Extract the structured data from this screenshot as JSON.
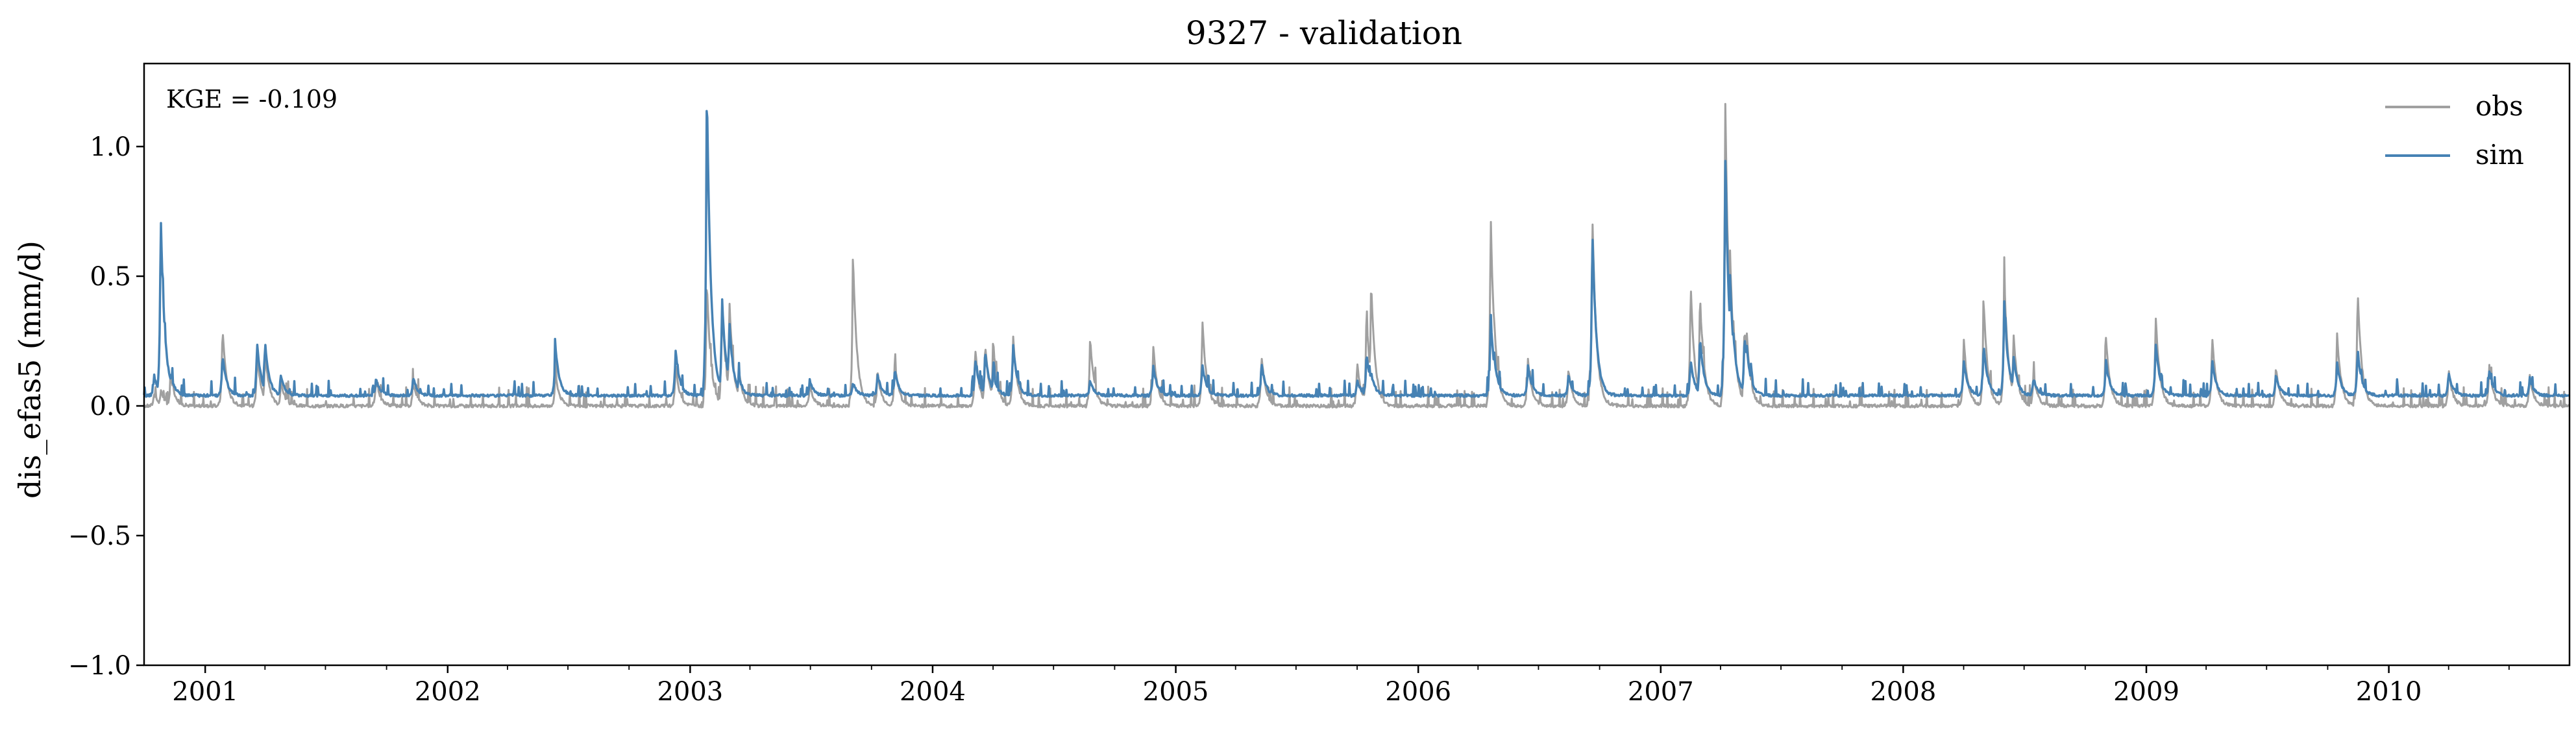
{
  "chart_data": {
    "type": "line",
    "title": "9327 - validation",
    "ylabel": "dis_efas5 (mm/d)",
    "xlabel": "",
    "annotation": "KGE = -0.109",
    "xlim": [
      "2000-10-01",
      "2010-09-30"
    ],
    "ylim": [
      -1.0,
      1.32
    ],
    "yticks": [
      -1.0,
      -0.5,
      0.0,
      0.5,
      1.0
    ],
    "ytick_labels": [
      "−1.0",
      "−0.5",
      "0.0",
      "0.5",
      "1.0"
    ],
    "xticks": [
      "2001-01-01",
      "2002-01-01",
      "2003-01-01",
      "2004-01-01",
      "2005-01-01",
      "2006-01-01",
      "2007-01-01",
      "2008-01-01",
      "2009-01-01",
      "2010-01-01"
    ],
    "xtick_labels": [
      "2001",
      "2002",
      "2003",
      "2004",
      "2005",
      "2006",
      "2007",
      "2008",
      "2009",
      "2010"
    ],
    "grid": false,
    "legend_position": "top-right",
    "baseline": {
      "obs": 0.0,
      "sim": 0.04
    },
    "series": [
      {
        "name": "obs",
        "color": "#a0a0a0",
        "peaks": [
          [
            "2000-10-16",
            0.05
          ],
          [
            "2000-10-26",
            0.06
          ],
          [
            "2000-11-10",
            0.13
          ],
          [
            "2001-01-27",
            0.31
          ],
          [
            "2001-03-20",
            0.21
          ],
          [
            "2001-04-01",
            0.22
          ],
          [
            "2001-04-25",
            0.1
          ],
          [
            "2001-09-15",
            0.11
          ],
          [
            "2001-11-10",
            0.09
          ],
          [
            "2002-06-12",
            0.13
          ],
          [
            "2002-12-10",
            0.16
          ],
          [
            "2003-01-26",
            0.5
          ],
          [
            "2003-02-18",
            0.41
          ],
          [
            "2003-03-01",
            0.42
          ],
          [
            "2003-03-15",
            0.15
          ],
          [
            "2003-06-30",
            0.08
          ],
          [
            "2003-09-03",
            0.6
          ],
          [
            "2003-10-10",
            0.13
          ],
          [
            "2003-11-05",
            0.18
          ],
          [
            "2004-03-05",
            0.23
          ],
          [
            "2004-03-20",
            0.25
          ],
          [
            "2004-04-01",
            0.26
          ],
          [
            "2004-05-01",
            0.28
          ],
          [
            "2004-08-25",
            0.27
          ],
          [
            "2004-11-28",
            0.24
          ],
          [
            "2005-02-10",
            0.34
          ],
          [
            "2005-05-10",
            0.2
          ],
          [
            "2005-10-01",
            0.17
          ],
          [
            "2005-10-15",
            0.37
          ],
          [
            "2005-10-22",
            0.49
          ],
          [
            "2006-04-20",
            0.75
          ],
          [
            "2006-04-25",
            0.35
          ],
          [
            "2006-06-15",
            0.18
          ],
          [
            "2006-08-15",
            0.14
          ],
          [
            "2006-09-20",
            0.76
          ],
          [
            "2007-02-15",
            0.48
          ],
          [
            "2007-03-01",
            0.44
          ],
          [
            "2007-04-08",
            1.22
          ],
          [
            "2007-04-15",
            0.64
          ],
          [
            "2007-04-20",
            0.35
          ],
          [
            "2007-05-07",
            0.3
          ],
          [
            "2007-05-10",
            0.31
          ],
          [
            "2008-04-01",
            0.27
          ],
          [
            "2008-05-01",
            0.42
          ],
          [
            "2008-06-01",
            0.52
          ],
          [
            "2008-06-15",
            0.29
          ],
          [
            "2008-07-15",
            0.13
          ],
          [
            "2008-11-01",
            0.28
          ],
          [
            "2009-01-15",
            0.36
          ],
          [
            "2009-04-10",
            0.28
          ],
          [
            "2009-07-15",
            0.15
          ],
          [
            "2009-10-15",
            0.29
          ],
          [
            "2009-11-15",
            0.46
          ],
          [
            "2010-04-01",
            0.14
          ],
          [
            "2010-06-01",
            0.16
          ],
          [
            "2010-08-01",
            0.12
          ]
        ]
      },
      {
        "name": "sim",
        "color": "#4682b4",
        "peaks": [
          [
            "2000-10-16",
            0.12
          ],
          [
            "2000-10-26",
            0.75
          ],
          [
            "2000-11-10",
            0.13
          ],
          [
            "2001-01-27",
            0.2
          ],
          [
            "2001-03-20",
            0.25
          ],
          [
            "2001-04-01",
            0.25
          ],
          [
            "2001-04-25",
            0.12
          ],
          [
            "2001-09-15",
            0.11
          ],
          [
            "2001-11-10",
            0.11
          ],
          [
            "2002-06-12",
            0.24
          ],
          [
            "2002-12-10",
            0.22
          ],
          [
            "2003-01-26",
            1.27
          ],
          [
            "2003-02-18",
            0.42
          ],
          [
            "2003-03-01",
            0.33
          ],
          [
            "2003-03-15",
            0.12
          ],
          [
            "2003-06-30",
            0.1
          ],
          [
            "2003-09-03",
            0.09
          ],
          [
            "2003-10-10",
            0.12
          ],
          [
            "2003-11-05",
            0.14
          ],
          [
            "2004-03-05",
            0.18
          ],
          [
            "2004-03-20",
            0.22
          ],
          [
            "2004-04-01",
            0.13
          ],
          [
            "2004-05-01",
            0.24
          ],
          [
            "2004-08-25",
            0.1
          ],
          [
            "2004-11-28",
            0.16
          ],
          [
            "2005-02-10",
            0.16
          ],
          [
            "2005-05-10",
            0.17
          ],
          [
            "2005-10-01",
            0.1
          ],
          [
            "2005-10-15",
            0.21
          ],
          [
            "2005-10-22",
            0.13
          ],
          [
            "2006-04-20",
            0.34
          ],
          [
            "2006-04-25",
            0.2
          ],
          [
            "2006-06-15",
            0.16
          ],
          [
            "2006-08-15",
            0.12
          ],
          [
            "2006-09-20",
            0.69
          ],
          [
            "2007-02-15",
            0.18
          ],
          [
            "2007-03-01",
            0.27
          ],
          [
            "2007-04-08",
            0.98
          ],
          [
            "2007-04-15",
            0.53
          ],
          [
            "2007-04-20",
            0.3
          ],
          [
            "2007-05-07",
            0.27
          ],
          [
            "2007-05-10",
            0.25
          ],
          [
            "2008-04-01",
            0.18
          ],
          [
            "2008-05-01",
            0.24
          ],
          [
            "2008-06-01",
            0.41
          ],
          [
            "2008-06-15",
            0.2
          ],
          [
            "2008-07-15",
            0.11
          ],
          [
            "2008-11-01",
            0.18
          ],
          [
            "2009-01-15",
            0.25
          ],
          [
            "2009-04-10",
            0.18
          ],
          [
            "2009-07-15",
            0.12
          ],
          [
            "2009-10-15",
            0.17
          ],
          [
            "2009-11-15",
            0.22
          ],
          [
            "2010-04-01",
            0.13
          ],
          [
            "2010-06-01",
            0.14
          ],
          [
            "2010-08-01",
            0.11
          ]
        ]
      }
    ]
  }
}
